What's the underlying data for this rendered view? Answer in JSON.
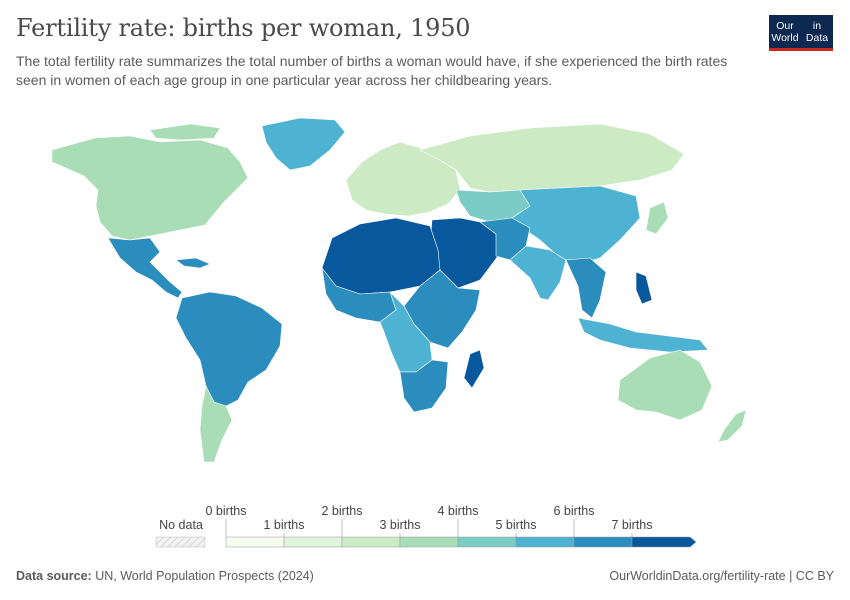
{
  "header": {
    "title": "Fertility rate: births per woman, 1950",
    "subtitle": "The total fertility rate summarizes the total number of births a woman would have, if she experienced the birth rates seen in women of each age group in one particular year across her childbearing years.",
    "logo_line1": "Our World",
    "logo_line2": "in Data"
  },
  "legend": {
    "no_data_label": "No data",
    "bins": [
      {
        "label": "0 births",
        "color": "#f7fcf0"
      },
      {
        "label": "1 births",
        "color": "#e0f3db"
      },
      {
        "label": "2 births",
        "color": "#ccebc5"
      },
      {
        "label": "3 births",
        "color": "#a8ddb5"
      },
      {
        "label": "4 births",
        "color": "#7bccc4"
      },
      {
        "label": "5 births",
        "color": "#4eb3d3"
      },
      {
        "label": "6 births",
        "color": "#2b8cbe"
      },
      {
        "label": "7 births",
        "color": "#08589e"
      }
    ],
    "colors": [
      "#f7fcf0",
      "#e0f3db",
      "#ccebc5",
      "#a8ddb5",
      "#7bccc4",
      "#4eb3d3",
      "#2b8cbe",
      "#08589e"
    ]
  },
  "footer": {
    "source_label": "Data source:",
    "source_value": "UN, World Population Prospects (2024)",
    "url": "OurWorldinData.org/fertility-rate | CC BY"
  }
}
